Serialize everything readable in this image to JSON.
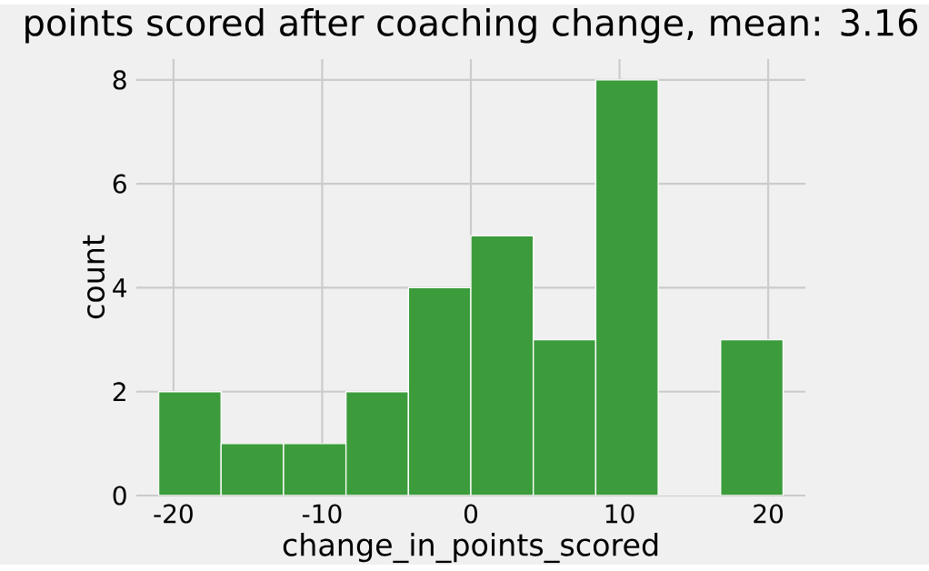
{
  "chart_data": {
    "type": "histogram",
    "title": "points scored after coaching change, mean: 3.16",
    "xlabel": "change_in_points_scored",
    "ylabel": "count",
    "bins": [
      -21,
      -16.8,
      -12.6,
      -8.4,
      -4.2,
      0,
      4.2,
      8.4,
      12.6,
      16.8,
      21
    ],
    "values": [
      2,
      1,
      1,
      2,
      4,
      5,
      3,
      8,
      0,
      3
    ],
    "color": "#3c9c3c",
    "xlim": [
      -22.5,
      22.5
    ],
    "ylim": [
      0,
      8.4
    ],
    "xticks": [
      -20,
      -10,
      0,
      10,
      20
    ],
    "yticks": [
      0,
      2,
      4,
      6,
      8
    ],
    "grid": true
  }
}
